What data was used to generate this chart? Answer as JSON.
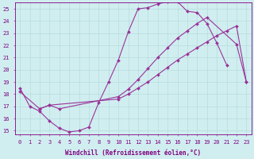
{
  "xlabel": "Windchill (Refroidissement éolien,°C)",
  "xlim": [
    -0.5,
    23.5
  ],
  "ylim": [
    14.7,
    25.5
  ],
  "xticks": [
    0,
    1,
    2,
    3,
    4,
    5,
    6,
    7,
    8,
    9,
    10,
    11,
    12,
    13,
    14,
    15,
    16,
    17,
    18,
    19,
    20,
    21,
    22,
    23
  ],
  "yticks": [
    15,
    16,
    17,
    18,
    19,
    20,
    21,
    22,
    23,
    24,
    25
  ],
  "bg_color": "#d0eef0",
  "line_color": "#993399",
  "grid_color": "#b0d8d8",
  "curve1_x": [
    0,
    1,
    2,
    3,
    4,
    5,
    6,
    7,
    8,
    9,
    10,
    11,
    12,
    13,
    14,
    15,
    16,
    17,
    18,
    19,
    20,
    21
  ],
  "curve1_y": [
    18.5,
    17.0,
    16.6,
    15.8,
    15.2,
    14.9,
    15.0,
    15.3,
    17.3,
    19.0,
    20.8,
    23.1,
    25.0,
    25.1,
    25.4,
    25.6,
    25.6,
    24.8,
    24.7,
    23.8,
    22.2,
    20.4
  ],
  "curve2_x": [
    2,
    3,
    4,
    10,
    11,
    12,
    13,
    14,
    15,
    16,
    17,
    18,
    19,
    22,
    23
  ],
  "curve2_y": [
    16.8,
    17.1,
    16.8,
    17.8,
    18.4,
    19.2,
    20.1,
    21.0,
    21.8,
    22.6,
    23.2,
    23.8,
    24.3,
    22.1,
    19.0
  ],
  "curve3_x": [
    0,
    2,
    3,
    10,
    11,
    12,
    13,
    14,
    15,
    16,
    17,
    18,
    19,
    20,
    21,
    22,
    23
  ],
  "curve3_y": [
    18.2,
    16.8,
    17.1,
    17.6,
    18.0,
    18.5,
    19.0,
    19.6,
    20.2,
    20.8,
    21.3,
    21.8,
    22.3,
    22.8,
    23.2,
    23.6,
    19.0
  ],
  "line_width": 0.8,
  "marker": "D",
  "marker_size": 2.0,
  "tick_fontsize": 5.0,
  "label_fontsize": 5.5
}
